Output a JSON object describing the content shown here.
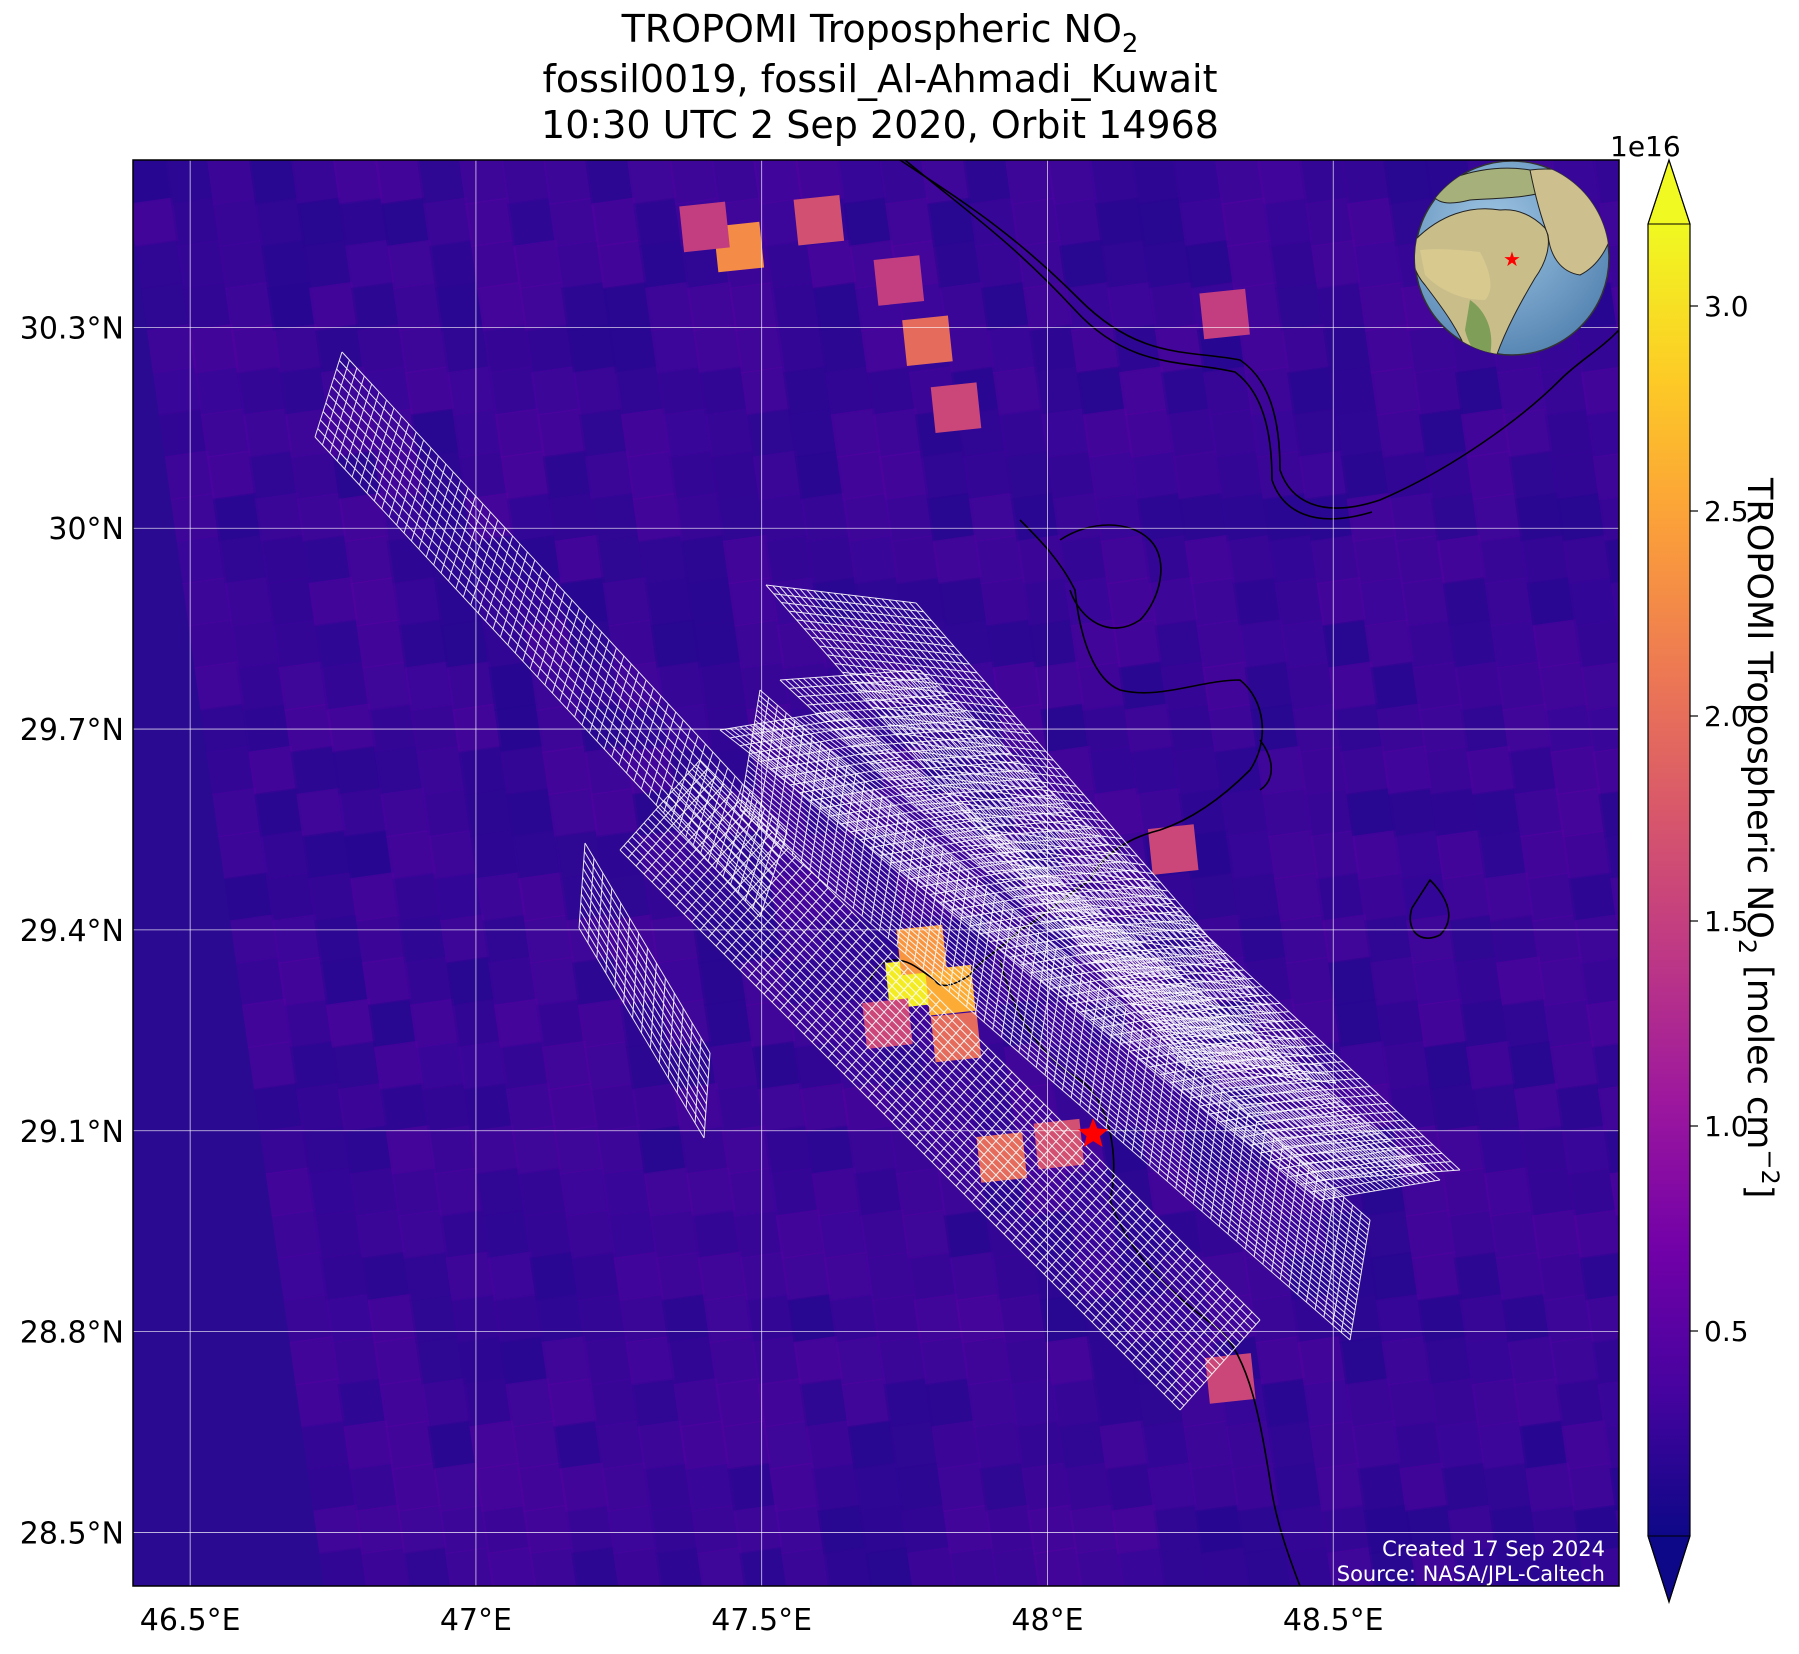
{
  "title": {
    "line1_main": "TROPOMI Tropospheric NO",
    "line1_sub": "2",
    "line2": "fossil0019, fossil_Al-Ahmadi_Kuwait",
    "line3": "10:30 UTC 2 Sep 2020, Orbit 14968"
  },
  "map": {
    "lon_range": [
      46.4,
      49.0
    ],
    "lat_range": [
      28.42,
      30.55
    ],
    "lon_ticks": [
      {
        "value": 46.5,
        "label": "46.5°E"
      },
      {
        "value": 47.0,
        "label": "47°E"
      },
      {
        "value": 47.5,
        "label": "47.5°E"
      },
      {
        "value": 48.0,
        "label": "48°E"
      },
      {
        "value": 48.5,
        "label": "48.5°E"
      }
    ],
    "lat_ticks": [
      {
        "value": 30.3,
        "label": "30.3°N"
      },
      {
        "value": 30.0,
        "label": "30°N"
      },
      {
        "value": 29.7,
        "label": "29.7°N"
      },
      {
        "value": 29.4,
        "label": "29.4°N"
      },
      {
        "value": 29.1,
        "label": "29.1°N"
      },
      {
        "value": 28.8,
        "label": "28.8°N"
      },
      {
        "value": 28.5,
        "label": "28.5°N"
      }
    ],
    "gridlines": true,
    "background_color": "#2a0a91",
    "site_marker": {
      "lon": 48.08,
      "lat": 29.095,
      "color": "#ff0000",
      "icon": "red-star-icon"
    },
    "inset": {
      "icon": "globe-icon",
      "position": "top-right"
    }
  },
  "no2_hotspots": [
    {
      "lon": 47.76,
      "lat": 29.32,
      "value": 3.1
    },
    {
      "lon": 47.83,
      "lat": 29.31,
      "value": 2.6
    },
    {
      "lon": 47.78,
      "lat": 29.37,
      "value": 2.4
    },
    {
      "lon": 47.84,
      "lat": 29.24,
      "value": 2.0
    },
    {
      "lon": 47.72,
      "lat": 29.26,
      "value": 1.6
    },
    {
      "lon": 47.92,
      "lat": 29.06,
      "value": 2.0
    },
    {
      "lon": 48.02,
      "lat": 29.08,
      "value": 1.7
    },
    {
      "lon": 47.46,
      "lat": 30.42,
      "value": 2.3
    },
    {
      "lon": 47.4,
      "lat": 30.45,
      "value": 1.5
    },
    {
      "lon": 47.6,
      "lat": 30.46,
      "value": 1.7
    },
    {
      "lon": 47.74,
      "lat": 30.37,
      "value": 1.5
    },
    {
      "lon": 47.79,
      "lat": 30.28,
      "value": 2.0
    },
    {
      "lon": 47.84,
      "lat": 30.18,
      "value": 1.6
    },
    {
      "lon": 48.31,
      "lat": 30.32,
      "value": 1.5
    },
    {
      "lon": 48.22,
      "lat": 29.52,
      "value": 1.6
    },
    {
      "lon": 48.32,
      "lat": 28.73,
      "value": 1.6
    }
  ],
  "colorbar": {
    "label_main": "TROPOMI Tropospheric NO",
    "label_sub": "2",
    "label_units": " [molec cm",
    "label_exp": "−2",
    "label_end": "]",
    "offset_label": "1e16",
    "range": [
      0.0,
      3.2
    ],
    "ticks": [
      {
        "value": 0.5,
        "label": "0.5"
      },
      {
        "value": 1.0,
        "label": "1.0"
      },
      {
        "value": 1.5,
        "label": "1.5"
      },
      {
        "value": 2.0,
        "label": "2.0"
      },
      {
        "value": 2.5,
        "label": "2.5"
      },
      {
        "value": 3.0,
        "label": "3.0"
      }
    ],
    "colormap": [
      "#0d0887",
      "#46039f",
      "#7201a8",
      "#9c179e",
      "#bd3786",
      "#d8576b",
      "#ed7953",
      "#fb9f3a",
      "#fdca26",
      "#f0f921"
    ],
    "extend": "both"
  },
  "credits": {
    "created": "Created 17 Sep 2024",
    "source": "Source: NASA/JPL-Caltech"
  }
}
